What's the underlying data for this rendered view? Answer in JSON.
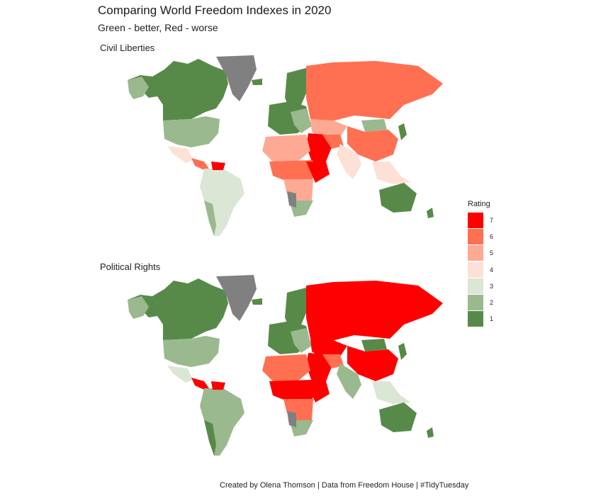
{
  "title": "Comparing World Freedom Indexes in 2020",
  "subtitle": "Green - better, Red - worse",
  "panels": [
    {
      "label": "Civil Liberties"
    },
    {
      "label": "Political Rights"
    }
  ],
  "legend": {
    "title": "Rating",
    "items": [
      {
        "label": "7",
        "color": "#ff0000"
      },
      {
        "label": "6",
        "color": "#ff7052"
      },
      {
        "label": "5",
        "color": "#fea994"
      },
      {
        "label": "4",
        "color": "#fde1d6"
      },
      {
        "label": "3",
        "color": "#dbe6d5"
      },
      {
        "label": "2",
        "color": "#9ab98e"
      },
      {
        "label": "1",
        "color": "#578a48"
      }
    ],
    "no_data_color": "#808080"
  },
  "caption": "Created by Olena Thomson | Data from Freedom House | #TidyTuesday"
}
